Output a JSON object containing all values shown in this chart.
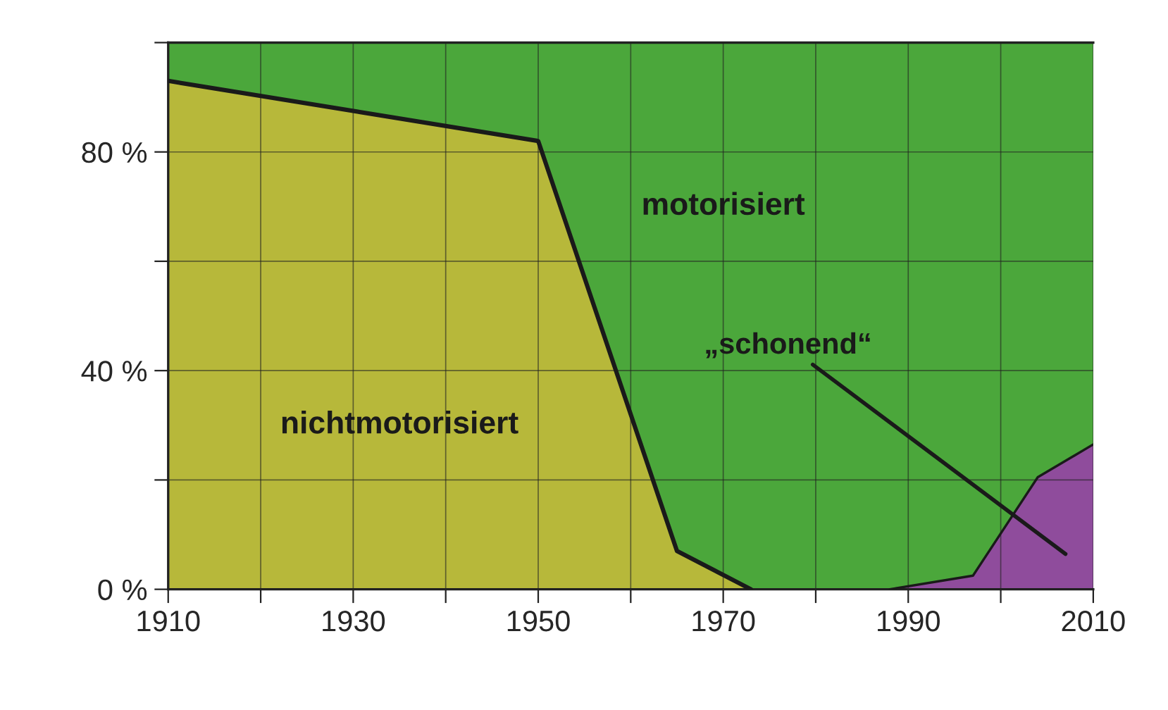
{
  "chart_data": {
    "type": "area",
    "stacked": true,
    "x": [
      1910,
      1950,
      1965,
      1973,
      1988,
      1997,
      2004,
      2010
    ],
    "series": [
      {
        "name": "nichtmotorisiert",
        "color": "#b7b83a",
        "values": [
          93,
          82,
          7,
          0,
          null,
          null,
          null,
          null
        ]
      },
      {
        "name": "„schonend“",
        "color": "#8f4c9c",
        "values": [
          null,
          null,
          null,
          null,
          0,
          2.5,
          20.5,
          26.5
        ]
      },
      {
        "name": "motorisiert",
        "color": "#4ba73b",
        "values": [
          7,
          18,
          93,
          100,
          100,
          97.5,
          79.5,
          73.5
        ]
      }
    ],
    "xlim": [
      1910,
      2010
    ],
    "xticks": [
      1910,
      {
        "value": 1920,
        "label": null
      },
      1930,
      {
        "value": 1940,
        "label": null
      },
      1950,
      {
        "value": 1960,
        "label": null
      },
      1970,
      {
        "value": 1980,
        "label": null
      },
      1990,
      {
        "value": 2000,
        "label": null
      },
      2010
    ],
    "ylim": [
      0,
      100
    ],
    "yticks": [
      {
        "value": 0,
        "label": "0 %"
      },
      {
        "value": 20,
        "label": null
      },
      {
        "value": 40,
        "label": "40 %"
      },
      {
        "value": 60,
        "label": null
      },
      {
        "value": 80,
        "label": "80 %"
      },
      {
        "value": 100,
        "label": null
      }
    ],
    "grid": true,
    "legend": false
  }
}
